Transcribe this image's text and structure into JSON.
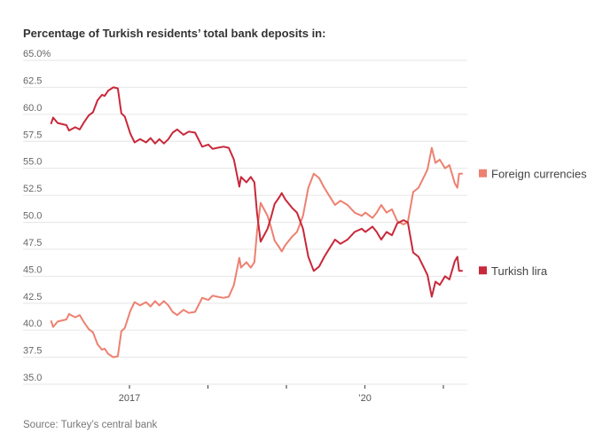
{
  "chart_data": {
    "type": "line",
    "title": "Percentage of Turkish residents’ total bank deposits in:",
    "source": "Source: Turkey’s central bank",
    "xlabel": "",
    "ylabel": "",
    "ylim": [
      35,
      65
    ],
    "xlim": [
      "2015-08",
      "2021-04"
    ],
    "y_ticks": [
      "65.0%",
      "62.5",
      "60.0",
      "57.5",
      "55.0",
      "52.5",
      "50.0",
      "47.5",
      "45.0",
      "42.5",
      "40.0",
      "37.5",
      "35.0"
    ],
    "y_tick_values": [
      65,
      62.5,
      60,
      57.5,
      55,
      52.5,
      50,
      47.5,
      45,
      42.5,
      40,
      37.5,
      35
    ],
    "x_ticks": [
      {
        "date": "2017-01-01",
        "label": "2017"
      },
      {
        "date": "2018-01-01",
        "label": ""
      },
      {
        "date": "2019-01-01",
        "label": ""
      },
      {
        "date": "2020-01-01",
        "label": "’20"
      },
      {
        "date": "2021-01-01",
        "label": ""
      }
    ],
    "grid": true,
    "legend_placement": "right, at line ends",
    "x": [
      "2016-01-01",
      "2016-01-11",
      "2016-02-01",
      "2016-03-13",
      "2016-03-25",
      "2016-04-23",
      "2016-05-14",
      "2016-06-04",
      "2016-06-25",
      "2016-07-15",
      "2016-08-05",
      "2016-08-26",
      "2016-09-07",
      "2016-09-24",
      "2016-10-18",
      "2016-11-08",
      "2016-11-24",
      "2016-12-10",
      "2017-01-05",
      "2017-01-25",
      "2017-02-19",
      "2017-03-19",
      "2017-04-09",
      "2017-04-30",
      "2017-05-20",
      "2017-06-10",
      "2017-07-01",
      "2017-07-21",
      "2017-08-11",
      "2017-09-09",
      "2017-10-04",
      "2017-11-02",
      "2017-12-05",
      "2018-01-03",
      "2018-01-23",
      "2018-02-13",
      "2018-03-14",
      "2018-04-08",
      "2018-05-02",
      "2018-05-27",
      "2018-06-04",
      "2018-06-29",
      "2018-07-19",
      "2018-08-05",
      "2018-08-17",
      "2018-09-03",
      "2018-09-19",
      "2018-10-05",
      "2018-10-22",
      "2018-11-07",
      "2018-11-28",
      "2018-12-10",
      "2018-12-27",
      "2019-01-29",
      "2019-02-19",
      "2019-03-19",
      "2019-04-13",
      "2019-05-08",
      "2019-06-02",
      "2019-06-26",
      "2019-07-21",
      "2019-08-15",
      "2019-09-09",
      "2019-10-12",
      "2019-11-14",
      "2019-12-17",
      "2020-01-03",
      "2020-02-05",
      "2020-02-25",
      "2020-03-17",
      "2020-04-11",
      "2020-05-06",
      "2020-05-31",
      "2020-06-29",
      "2020-07-19",
      "2020-08-13",
      "2020-09-07",
      "2020-10-02",
      "2020-10-19",
      "2020-11-08",
      "2020-11-25",
      "2020-12-15",
      "2021-01-09",
      "2021-01-29",
      "2021-02-23",
      "2021-03-07",
      "2021-03-15",
      "2021-04-01"
    ],
    "series": [
      {
        "name": "Foreign currencies",
        "color": "#ee8070",
        "values": [
          40.9,
          40.3,
          40.8,
          41.0,
          41.5,
          41.2,
          41.4,
          40.7,
          40.1,
          39.8,
          38.7,
          38.2,
          38.3,
          37.8,
          37.5,
          37.6,
          39.9,
          40.2,
          41.8,
          42.6,
          42.3,
          42.6,
          42.2,
          42.7,
          42.3,
          42.7,
          42.3,
          41.7,
          41.4,
          41.9,
          41.6,
          41.7,
          43.0,
          42.8,
          43.2,
          43.1,
          43.0,
          43.1,
          44.2,
          46.7,
          45.8,
          46.3,
          45.8,
          46.3,
          49.1,
          51.8,
          51.2,
          50.6,
          49.5,
          48.3,
          47.7,
          47.3,
          47.9,
          48.7,
          49.1,
          50.6,
          53.2,
          54.5,
          54.1,
          53.2,
          52.4,
          51.6,
          52.0,
          51.6,
          50.9,
          50.6,
          50.9,
          50.4,
          50.9,
          51.6,
          50.9,
          51.2,
          50.1,
          49.8,
          50.0,
          52.8,
          53.2,
          54.2,
          54.9,
          56.9,
          55.5,
          55.8,
          55.0,
          55.3,
          53.6,
          53.2,
          54.5,
          54.5
        ]
      },
      {
        "name": "Turkish lira",
        "color": "#c8283a",
        "values": [
          59.1,
          59.7,
          59.2,
          59.0,
          58.5,
          58.8,
          58.6,
          59.3,
          59.9,
          60.2,
          61.3,
          61.8,
          61.7,
          62.2,
          62.5,
          62.4,
          60.1,
          59.8,
          58.2,
          57.4,
          57.7,
          57.4,
          57.8,
          57.3,
          57.7,
          57.3,
          57.7,
          58.3,
          58.6,
          58.1,
          58.4,
          58.3,
          57.0,
          57.2,
          56.8,
          56.9,
          57.0,
          56.9,
          55.8,
          53.3,
          54.2,
          53.7,
          54.2,
          53.7,
          50.9,
          48.2,
          48.8,
          49.4,
          50.5,
          51.7,
          52.3,
          52.7,
          52.1,
          51.3,
          50.9,
          49.4,
          46.8,
          45.5,
          45.9,
          46.8,
          47.6,
          48.4,
          48.0,
          48.4,
          49.1,
          49.4,
          49.1,
          49.6,
          49.1,
          48.4,
          49.1,
          48.8,
          49.9,
          50.2,
          50.0,
          47.2,
          46.8,
          45.8,
          45.1,
          43.1,
          44.5,
          44.2,
          45.0,
          44.7,
          46.4,
          46.8,
          45.5,
          45.5
        ]
      }
    ]
  }
}
